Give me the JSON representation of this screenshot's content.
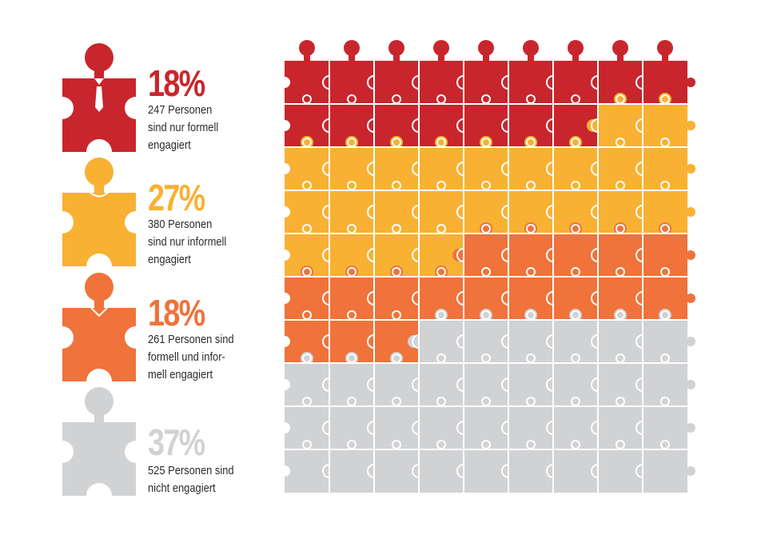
{
  "chart_data": {
    "type": "waffle",
    "grid": {
      "columns": 9,
      "rows": 10,
      "total_pieces": 90
    },
    "categories": [
      {
        "key": "formal",
        "percent": "18%",
        "value": 18,
        "pieces": 16,
        "color": "#c8262c",
        "lines": [
          "247 Personen",
          "sind nur formell",
          "engagiert"
        ]
      },
      {
        "key": "informal",
        "percent": "27%",
        "value": 27,
        "pieces": 24,
        "color": "#f8b133",
        "lines": [
          "380 Personen",
          "sind nur informell",
          "engagiert"
        ]
      },
      {
        "key": "both",
        "percent": "18%",
        "value": 18,
        "pieces": 17,
        "color": "#ef733a",
        "lines": [
          "261 Personen sind",
          "formell und infor-",
          "mell engagiert"
        ]
      },
      {
        "key": "none",
        "percent": "37%",
        "value": 37,
        "pieces": 33,
        "color": "#d1d2d4",
        "lines": [
          "525 Personen sind",
          "nicht engagiert"
        ]
      }
    ]
  }
}
